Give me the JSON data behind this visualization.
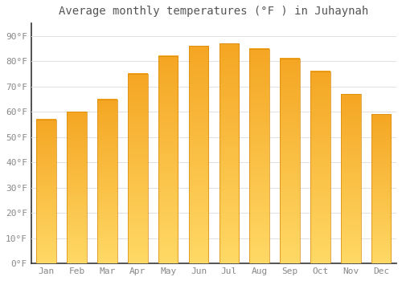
{
  "title": "Average monthly temperatures (°F ) in Juhaynah",
  "months": [
    "Jan",
    "Feb",
    "Mar",
    "Apr",
    "May",
    "Jun",
    "Jul",
    "Aug",
    "Sep",
    "Oct",
    "Nov",
    "Dec"
  ],
  "values": [
    57,
    60,
    65,
    75,
    82,
    86,
    87,
    85,
    81,
    76,
    67,
    59
  ],
  "bar_color_top": "#F5A623",
  "bar_color_bottom": "#FFD966",
  "bar_edge_color": "#D4880A",
  "background_color": "#ffffff",
  "grid_color": "#e0e0e0",
  "yticks": [
    0,
    10,
    20,
    30,
    40,
    50,
    60,
    70,
    80,
    90
  ],
  "ytick_labels": [
    "0°F",
    "10°F",
    "20°F",
    "30°F",
    "40°F",
    "50°F",
    "60°F",
    "70°F",
    "80°F",
    "90°F"
  ],
  "ylim": [
    0,
    95
  ],
  "title_fontsize": 10,
  "tick_fontsize": 8,
  "title_color": "#555555",
  "tick_color": "#888888",
  "spine_color": "#333333"
}
